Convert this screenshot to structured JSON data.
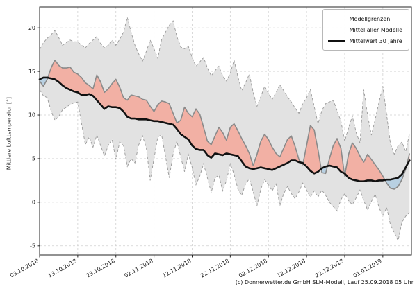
{
  "figure": {
    "background": "#ffffff",
    "y_axis_label": "Mittlere Lufttemperatur [°]",
    "caption": "(c) Donnerwetter.de GmbH SLM-Modell, Lauf 25.09.2018 05 Uhr",
    "legend": {
      "items": [
        {
          "label": "Modellgrenzen",
          "style": "dashed"
        },
        {
          "label": "Mittel aller Modelle",
          "style": "solid"
        },
        {
          "label": "Mittelwert 30 Jahre",
          "style": "solid-thick"
        }
      ]
    },
    "colors": {
      "band_fill": "#e2e2e2",
      "band_edge": "#999999",
      "above_fill": "#f2b0a4",
      "below_fill": "#b8d0e2",
      "model_mean_line": "#8a8a8a",
      "mean30_line": "#111111",
      "grid": "#d0d0d0",
      "spine": "#262626",
      "tick_text": "#1a1a1a"
    }
  },
  "chart_data": {
    "type": "line",
    "title": "",
    "xlabel": "",
    "ylabel": "Mittlere Lufttemperatur [°]",
    "x_start_date": "03.10.2018",
    "x_step_days": 1,
    "xlim": [
      0,
      97.5
    ],
    "ylim": [
      -6.05,
      22.4
    ],
    "yticks": [
      -5,
      0,
      5,
      10,
      15,
      20
    ],
    "xticks": {
      "positions": [
        0,
        10,
        20,
        30,
        40,
        50,
        60,
        70,
        80,
        90
      ],
      "labels": [
        "03.10.2018",
        "13.10.2018",
        "23.10.2018",
        "02.11.2018",
        "12.11.2018",
        "22.11.2018",
        "02.12.2018",
        "12.12.2018",
        "22.12.2018",
        "01.01.2019"
      ]
    },
    "grid": true,
    "legend_position": "upper right",
    "series": [
      {
        "name": "Modellgrenzen (obere Grenze)",
        "role": "upper_bound",
        "values": [
          17.5,
          18.3,
          18.8,
          19.2,
          19.7,
          18.9,
          18.0,
          18.3,
          18.6,
          18.4,
          18.4,
          18.0,
          17.7,
          18.2,
          18.6,
          19.0,
          18.2,
          17.7,
          18.0,
          18.6,
          18.0,
          18.7,
          19.5,
          21.2,
          19.5,
          18.0,
          17.0,
          16.2,
          17.3,
          18.6,
          17.6,
          16.5,
          18.7,
          19.5,
          20.3,
          20.8,
          19.0,
          17.8,
          17.6,
          17.9,
          16.6,
          15.6,
          16.1,
          16.6,
          15.4,
          14.5,
          15.1,
          15.6,
          14.5,
          13.9,
          14.8,
          16.3,
          14.4,
          12.8,
          13.7,
          14.7,
          12.6,
          11.0,
          12.1,
          13.3,
          12.5,
          11.8,
          12.6,
          13.5,
          12.8,
          12.1,
          11.5,
          10.8,
          10.2,
          11.3,
          12.0,
          12.9,
          11.0,
          9.0,
          10.5,
          11.3,
          11.5,
          11.7,
          10.5,
          9.3,
          7.0,
          8.5,
          9.9,
          8.0,
          6.8,
          12.9,
          10.0,
          7.7,
          9.5,
          11.5,
          13.3,
          10.0,
          6.7,
          5.5,
          6.5,
          6.9,
          5.8,
          7.9
        ]
      },
      {
        "name": "Modellgrenzen (untere Grenze)",
        "role": "lower_bound",
        "values": [
          12.9,
          12.2,
          12.0,
          10.5,
          9.4,
          9.8,
          10.6,
          10.9,
          11.2,
          11.4,
          11.5,
          9.0,
          6.6,
          7.5,
          6.3,
          7.7,
          6.5,
          5.3,
          6.5,
          7.2,
          4.9,
          6.9,
          6.5,
          4.1,
          5.0,
          4.5,
          6.6,
          7.6,
          6.2,
          2.5,
          5.0,
          7.5,
          7.7,
          5.3,
          2.8,
          5.5,
          7.0,
          5.2,
          3.5,
          5.5,
          4.0,
          2.0,
          3.0,
          4.4,
          2.8,
          1.1,
          2.8,
          3.1,
          1.3,
          2.5,
          4.4,
          3.2,
          1.5,
          0.8,
          2.1,
          2.7,
          1.2,
          -0.4,
          1.5,
          2.6,
          2.0,
          1.3,
          2.2,
          -0.4,
          1.0,
          1.8,
          1.0,
          0.4,
          1.2,
          2.2,
          1.4,
          0.6,
          1.3,
          0.6,
          1.4,
          0.8,
          0.0,
          -0.5,
          -1.0,
          0.3,
          1.0,
          0.2,
          -0.3,
          0.5,
          1.4,
          0.2,
          -0.9,
          0.1,
          0.9,
          -0.6,
          -1.6,
          -0.6,
          -2.6,
          -3.5,
          -4.4,
          -2.3,
          -1.6,
          -1.2
        ]
      },
      {
        "name": "Mittel aller Modelle",
        "role": "model_mean",
        "values": [
          13.9,
          13.3,
          14.1,
          15.4,
          16.3,
          15.7,
          15.4,
          15.4,
          15.5,
          14.9,
          14.7,
          14.3,
          13.7,
          13.4,
          13.0,
          14.6,
          13.8,
          12.6,
          13.0,
          13.6,
          14.1,
          13.2,
          12.0,
          11.7,
          12.3,
          12.2,
          12.1,
          11.8,
          11.7,
          11.0,
          10.4,
          11.2,
          11.6,
          11.5,
          11.3,
          10.2,
          9.1,
          9.4,
          10.9,
          10.2,
          9.8,
          10.7,
          10.1,
          8.6,
          7.0,
          6.6,
          7.6,
          8.6,
          8.0,
          7.1,
          8.6,
          9.0,
          8.2,
          7.3,
          6.5,
          5.6,
          4.2,
          5.5,
          7.0,
          7.8,
          7.2,
          6.3,
          5.6,
          5.2,
          6.2,
          7.2,
          7.6,
          6.4,
          4.9,
          4.3,
          6.5,
          8.8,
          8.3,
          6.0,
          3.4,
          3.3,
          5.0,
          6.5,
          7.3,
          6.2,
          3.0,
          5.5,
          6.8,
          6.2,
          5.3,
          4.6,
          5.5,
          4.9,
          4.3,
          3.7,
          3.0,
          2.2,
          1.6,
          1.5,
          1.8,
          2.6,
          3.8,
          5.6
        ]
      },
      {
        "name": "Mittelwert 30 Jahre",
        "role": "mean_30y",
        "values": [
          14.1,
          14.3,
          14.3,
          14.2,
          14.1,
          13.8,
          13.4,
          13.1,
          12.9,
          12.7,
          12.6,
          12.3,
          12.3,
          12.4,
          12.2,
          11.7,
          11.2,
          10.7,
          11.0,
          10.9,
          10.9,
          10.8,
          10.4,
          9.8,
          9.6,
          9.6,
          9.5,
          9.5,
          9.5,
          9.4,
          9.3,
          9.3,
          9.2,
          9.1,
          9.0,
          8.9,
          8.4,
          7.8,
          7.5,
          7.2,
          6.5,
          6.1,
          6.0,
          6.0,
          5.4,
          5.1,
          5.6,
          5.5,
          5.4,
          5.6,
          5.5,
          5.4,
          5.3,
          4.7,
          4.1,
          3.9,
          3.8,
          3.9,
          4.0,
          3.9,
          3.8,
          3.7,
          3.9,
          4.1,
          4.3,
          4.5,
          4.8,
          4.8,
          4.6,
          4.5,
          4.1,
          3.6,
          3.3,
          3.5,
          3.9,
          4.1,
          4.2,
          4.1,
          4.0,
          3.5,
          3.3,
          2.8,
          2.6,
          2.5,
          2.4,
          2.4,
          2.5,
          2.5,
          2.4,
          2.5,
          2.5,
          2.6,
          2.6,
          2.7,
          2.8,
          3.2,
          4.0,
          4.8
        ]
      }
    ]
  }
}
